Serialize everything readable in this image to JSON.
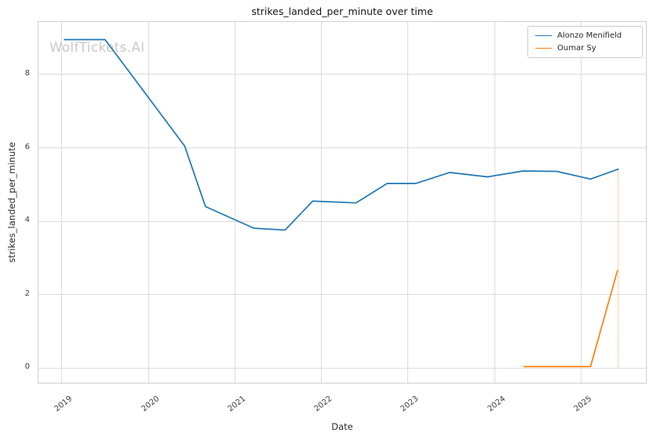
{
  "header": {
    "title": "strikes_landed_per_minute over time",
    "watermark": "WolfTickets.AI"
  },
  "axes": {
    "xlabel": "Date",
    "ylabel": "strikes_landed_per_minute"
  },
  "legend": {
    "items": [
      {
        "label": "Alonzo Menifield",
        "color": "#1f77b4"
      },
      {
        "label": "Oumar Sy",
        "color": "#ff7f0e"
      }
    ]
  },
  "chart_data": {
    "type": "line",
    "title": "strikes_landed_per_minute over time",
    "xlabel": "Date",
    "ylabel": "strikes_landed_per_minute",
    "x_unit": "decimal_year",
    "xlim": [
      2018.73,
      2025.75
    ],
    "ylim": [
      -0.4,
      9.43
    ],
    "xticks": [
      2019,
      2020,
      2021,
      2022,
      2023,
      2024,
      2025
    ],
    "yticks": [
      0,
      2,
      4,
      6,
      8
    ],
    "grid": true,
    "legend_position": "upper right",
    "series": [
      {
        "name": "Alonzo Menifield",
        "color": "#1f77b4",
        "x": [
          2019.03,
          2019.5,
          2020.42,
          2020.66,
          2021.22,
          2021.58,
          2021.9,
          2022.4,
          2022.76,
          2023.09,
          2023.48,
          2023.92,
          2024.33,
          2024.72,
          2025.11,
          2025.43
        ],
        "y": [
          8.95,
          8.95,
          6.05,
          4.4,
          3.81,
          3.76,
          4.55,
          4.5,
          5.03,
          5.03,
          5.33,
          5.21,
          5.37,
          5.36,
          5.15,
          5.42
        ]
      },
      {
        "name": "Oumar Sy",
        "color": "#ff7f0e",
        "x": [
          2024.34,
          2025.11,
          2025.42
        ],
        "y": [
          0.04,
          0.04,
          2.65
        ]
      }
    ],
    "annotations": [
      {
        "type": "vline",
        "x": 2025.43,
        "y0": 0.0,
        "y1": 5.42,
        "color": "#ff7f0e",
        "opacity": 0.4
      }
    ]
  }
}
